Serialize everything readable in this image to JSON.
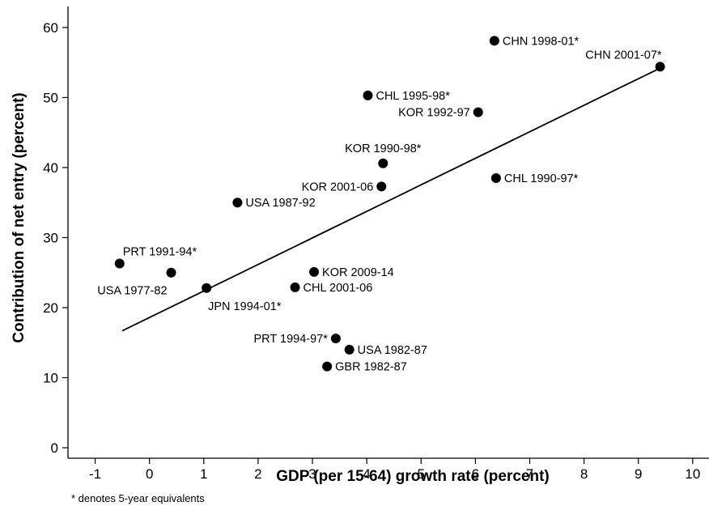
{
  "chart_data": {
    "type": "scatter",
    "title": "",
    "xlabel": "GDP (per 15-64) growth rate (percent)",
    "ylabel": "Contribution of net entry (percent)",
    "xlim": [
      -1.5,
      10.3
    ],
    "ylim": [
      -1.5,
      63
    ],
    "xticks": [
      -1,
      0,
      1,
      2,
      3,
      4,
      5,
      6,
      7,
      8,
      9,
      10
    ],
    "yticks": [
      0,
      10,
      20,
      30,
      40,
      50,
      60
    ],
    "grid": false,
    "legend": "none",
    "points": [
      {
        "label": "CHN 1998-01*",
        "x": 6.35,
        "y": 58.1,
        "pos": "right"
      },
      {
        "label": "CHN 2001-07*",
        "x": 9.4,
        "y": 54.4,
        "pos": "above-left"
      },
      {
        "label": "CHL 1995-98*",
        "x": 4.02,
        "y": 50.3,
        "pos": "right"
      },
      {
        "label": "KOR 1992-97",
        "x": 6.05,
        "y": 47.9,
        "pos": "left"
      },
      {
        "label": "KOR 1990-98*",
        "x": 4.3,
        "y": 40.6,
        "pos": "above"
      },
      {
        "label": "CHL 1990-97*",
        "x": 6.38,
        "y": 38.5,
        "pos": "right"
      },
      {
        "label": "KOR 2001-06",
        "x": 4.27,
        "y": 37.3,
        "pos": "left"
      },
      {
        "label": "USA 1987-92",
        "x": 1.62,
        "y": 35.0,
        "pos": "right"
      },
      {
        "label": "PRT 1991-94*",
        "x": -0.55,
        "y": 26.3,
        "pos": "above-right"
      },
      {
        "label": "USA 1977-82",
        "x": 0.4,
        "y": 25.0,
        "pos": "below-left"
      },
      {
        "label": "KOR 2009-14",
        "x": 3.03,
        "y": 25.1,
        "pos": "right"
      },
      {
        "label": "JPN 1994-01*",
        "x": 1.05,
        "y": 22.8,
        "pos": "below-right"
      },
      {
        "label": "CHL 2001-06",
        "x": 2.68,
        "y": 22.9,
        "pos": "right"
      },
      {
        "label": "PRT 1994-97*",
        "x": 3.43,
        "y": 15.6,
        "pos": "left"
      },
      {
        "label": "USA 1982-87",
        "x": 3.68,
        "y": 14.0,
        "pos": "right"
      },
      {
        "label": "GBR 1982-87",
        "x": 3.27,
        "y": 11.6,
        "pos": "right"
      }
    ],
    "fit_line": {
      "x": [
        -0.5,
        9.4
      ],
      "y": [
        16.7,
        54.2
      ]
    }
  },
  "footnote": "* denotes 5-year equivalents",
  "colors": {
    "ink": "#000000"
  }
}
